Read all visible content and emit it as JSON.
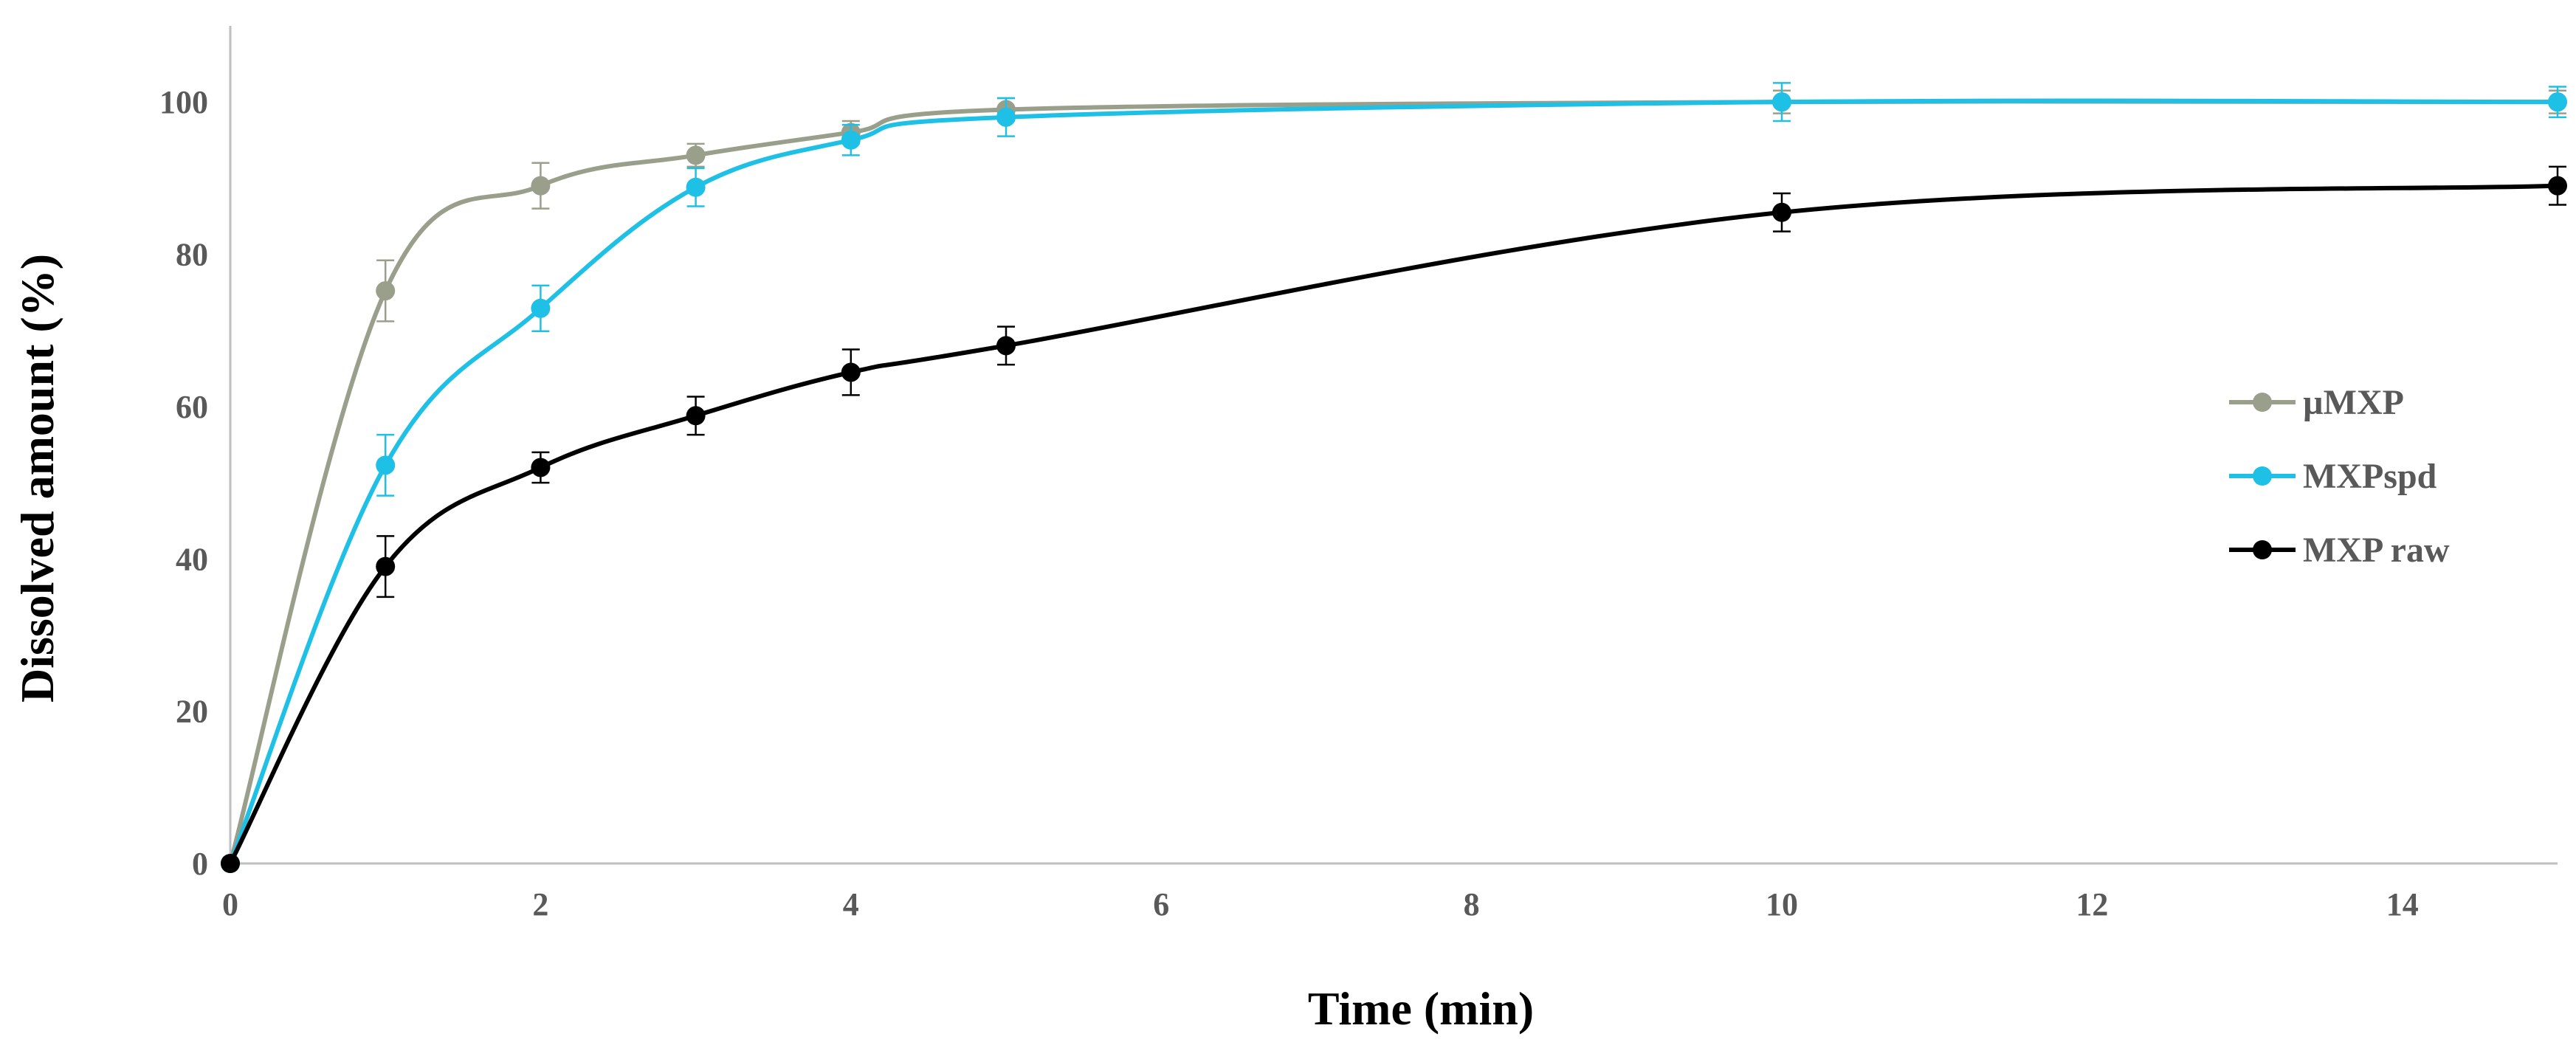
{
  "chart_data": {
    "type": "line",
    "title": "",
    "xlabel": "Time (min)",
    "ylabel": "Dissolved amount (%)",
    "xlim": [
      0,
      15
    ],
    "ylim": [
      0,
      110
    ],
    "xticks": [
      0,
      2,
      4,
      6,
      8,
      10,
      12,
      14
    ],
    "yticks": [
      0,
      20,
      40,
      60,
      80,
      100
    ],
    "grid": false,
    "legend_position": "right",
    "x": [
      0,
      1,
      2,
      3,
      4,
      5,
      10,
      15
    ],
    "series": [
      {
        "name": "µMXP",
        "color": "#9a9f8b",
        "values": [
          0,
          75.2,
          89.0,
          93.0,
          96.0,
          99.0,
          100.0,
          100.0
        ],
        "errors": [
          0,
          4,
          3,
          1.5,
          1.5,
          1.5,
          1.5,
          1.5
        ]
      },
      {
        "name": "MXPspd",
        "color": "#1fc0e6",
        "values": [
          0,
          52.3,
          72.9,
          88.8,
          95.0,
          98.0,
          100.0,
          100.0
        ],
        "errors": [
          0,
          4,
          3,
          2.5,
          2,
          2.5,
          2.5,
          2
        ]
      },
      {
        "name": "MXP raw",
        "color": "#000000",
        "values": [
          0,
          39.0,
          52.0,
          58.8,
          64.5,
          68.0,
          85.5,
          89.0
        ],
        "errors": [
          0,
          4,
          2,
          2.5,
          3,
          2.5,
          2.5,
          2.5
        ]
      }
    ]
  }
}
